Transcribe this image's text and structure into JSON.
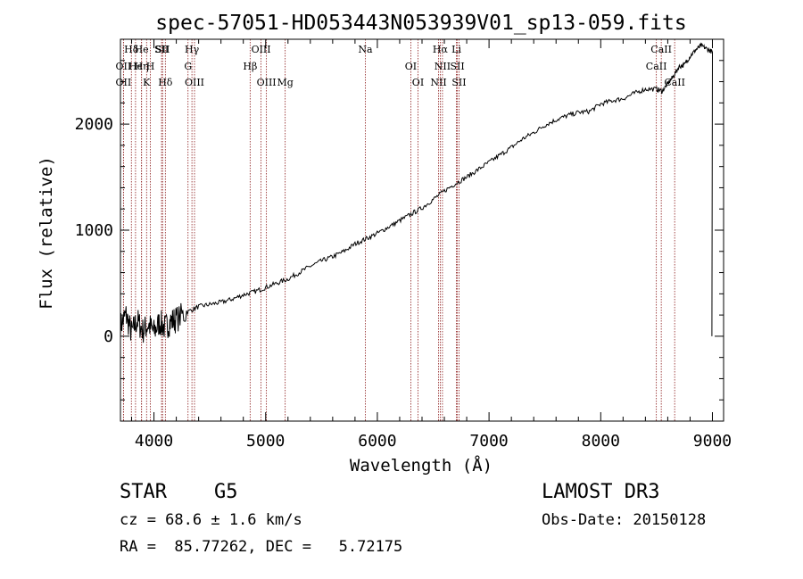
{
  "chart_data": {
    "type": "line",
    "title": "spec-57051-HD053443N053939V01_sp13-059.fits",
    "xlabel": "Wavelength (Å)",
    "ylabel": "Flux (relative)",
    "xlim": [
      3700,
      9100
    ],
    "ylim": [
      -800,
      2800
    ],
    "xticks": [
      4000,
      5000,
      6000,
      7000,
      8000,
      9000
    ],
    "yticks": [
      0,
      1000,
      2000
    ],
    "series": [
      {
        "name": "flux",
        "x": [
          3700,
          3750,
          3800,
          3850,
          3900,
          3950,
          4000,
          4050,
          4100,
          4150,
          4200,
          4300,
          4400,
          4500,
          4600,
          4700,
          4800,
          4900,
          5000,
          5100,
          5200,
          5300,
          5400,
          5500,
          5600,
          5700,
          5800,
          5900,
          6000,
          6100,
          6200,
          6300,
          6400,
          6500,
          6600,
          6700,
          6800,
          6900,
          7000,
          7100,
          7200,
          7300,
          7400,
          7500,
          7600,
          7700,
          7800,
          7900,
          8000,
          8100,
          8200,
          8300,
          8400,
          8500,
          8550,
          8600,
          8650,
          8700,
          8750,
          8800,
          8850,
          8900,
          8950,
          9000
        ],
        "y": [
          100,
          200,
          30,
          150,
          50,
          110,
          40,
          130,
          80,
          140,
          160,
          230,
          280,
          300,
          320,
          350,
          390,
          420,
          460,
          500,
          540,
          600,
          660,
          710,
          750,
          800,
          870,
          920,
          970,
          1030,
          1090,
          1150,
          1210,
          1290,
          1370,
          1440,
          1500,
          1570,
          1640,
          1710,
          1780,
          1860,
          1920,
          1990,
          2040,
          2080,
          2110,
          2120,
          2190,
          2220,
          2240,
          2290,
          2330,
          2330,
          2310,
          2380,
          2450,
          2540,
          2560,
          2640,
          2700,
          2740,
          2710,
          2680
        ]
      }
    ],
    "lines": [
      {
        "name": "Hδ",
        "x": 3798
      },
      {
        "name": "OII",
        "x": 3727
      },
      {
        "name": "OII",
        "x": 3727
      },
      {
        "name": "He",
        "x": 3889
      },
      {
        "name": "Hϵ",
        "x": 3835
      },
      {
        "name": "K",
        "x": 3934
      },
      {
        "name": "SII",
        "x": 4068
      },
      {
        "name": "H",
        "x": 3968
      },
      {
        "name": "Hδ",
        "x": 4102
      },
      {
        "name": "SII",
        "x": 4077
      },
      {
        "name": "Hη",
        "x": 3889
      },
      {
        "name": "OIII",
        "x": 4363
      },
      {
        "name": "Hγ",
        "x": 4340
      },
      {
        "name": "G",
        "x": 4305
      },
      {
        "name": "OIII",
        "x": 5007
      },
      {
        "name": "OIII",
        "x": 4959
      },
      {
        "name": "Hβ",
        "x": 4861
      },
      {
        "name": "Mg",
        "x": 5175
      },
      {
        "name": "Na",
        "x": 5893
      },
      {
        "name": "OI",
        "x": 6300
      },
      {
        "name": "OI",
        "x": 6364
      },
      {
        "name": "Hα",
        "x": 6563
      },
      {
        "name": "SII",
        "x": 6716
      },
      {
        "name": "NII",
        "x": 6548
      },
      {
        "name": "Li",
        "x": 6708
      },
      {
        "name": "NII",
        "x": 6583
      },
      {
        "name": "SII",
        "x": 6731
      },
      {
        "name": "CaII",
        "x": 8542
      },
      {
        "name": "CaII",
        "x": 8498
      },
      {
        "name": "CaII",
        "x": 8662
      }
    ],
    "line_color": "#8b1a1a",
    "spectrum_color": "#000000"
  },
  "info": {
    "object_class": "STAR    G5",
    "cz": "cz = 68.6 ± 1.6 km/s",
    "coords": "RA =  85.77262, DEC =   5.72175",
    "survey": "LAMOST DR3",
    "obs_date": "Obs-Date: 20150128"
  }
}
